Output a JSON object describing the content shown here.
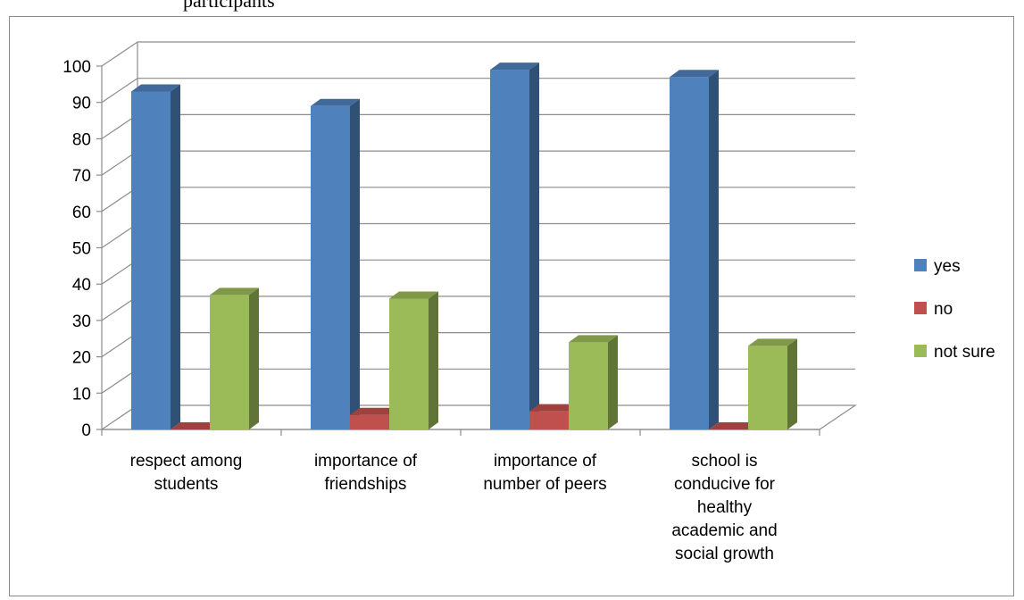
{
  "top_cut_text": "participants",
  "chart_data": {
    "type": "bar",
    "categories": [
      [
        "respect among",
        "students"
      ],
      [
        "importance of",
        "friendships"
      ],
      [
        "importance of",
        "number of peers"
      ],
      [
        "school is",
        "conducive for",
        "healthy",
        "academic and",
        "social growth"
      ]
    ],
    "series": [
      {
        "name": "yes",
        "color": "#4F81BD",
        "values": [
          93,
          89,
          99,
          97
        ]
      },
      {
        "name": "no",
        "color": "#C0504D",
        "values": [
          0,
          4,
          5,
          0
        ]
      },
      {
        "name": "not sure",
        "color": "#9BBB59",
        "values": [
          37,
          36,
          24,
          23
        ]
      }
    ],
    "ylim": [
      0,
      100
    ],
    "yticks": [
      0,
      10,
      20,
      30,
      40,
      50,
      60,
      70,
      80,
      90,
      100
    ],
    "grid": true,
    "legend": "right",
    "title": "",
    "xlabel": "",
    "ylabel": ""
  }
}
